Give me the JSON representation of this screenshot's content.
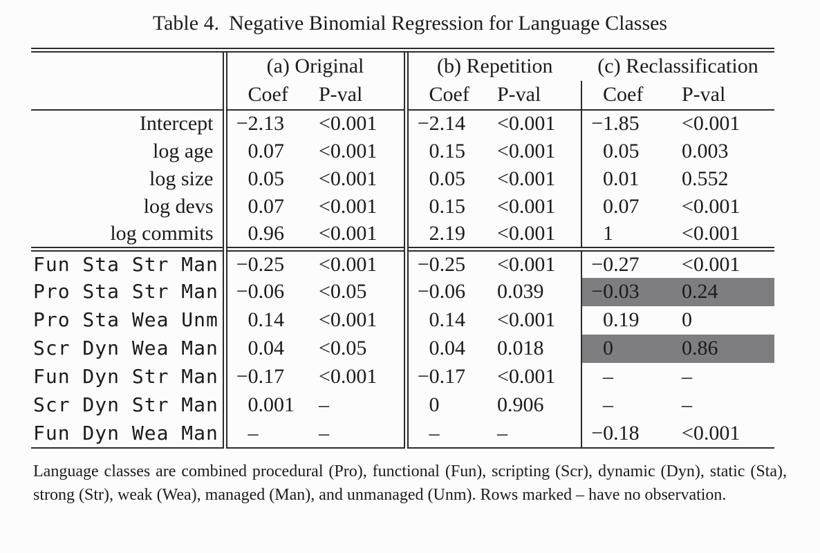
{
  "title": {
    "label": "Table 4.",
    "text": "Negative Binomial Regression for Language Classes"
  },
  "columns": {
    "coef": "Coef",
    "pval": "P-val"
  },
  "groups": [
    {
      "id": "a",
      "label": "(a) Original"
    },
    {
      "id": "b",
      "label": "(b) Repetition"
    },
    {
      "id": "c",
      "label": "(c) Reclassification"
    }
  ],
  "sections": [
    {
      "name": "model-controls",
      "mono": false,
      "rows": [
        {
          "label": "Intercept",
          "a": [
            "−2.13",
            "<0.001"
          ],
          "b": [
            "−2.14",
            "<0.001"
          ],
          "c": [
            "−1.85",
            "<0.001"
          ],
          "highlight_c": false
        },
        {
          "label": "log age",
          "a": [
            "0.07",
            "<0.001"
          ],
          "b": [
            "0.15",
            "<0.001"
          ],
          "c": [
            "0.05",
            "0.003"
          ],
          "highlight_c": false
        },
        {
          "label": "log size",
          "a": [
            "0.05",
            "<0.001"
          ],
          "b": [
            "0.05",
            "<0.001"
          ],
          "c": [
            "0.01",
            "0.552"
          ],
          "highlight_c": false
        },
        {
          "label": "log devs",
          "a": [
            "0.07",
            "<0.001"
          ],
          "b": [
            "0.15",
            "<0.001"
          ],
          "c": [
            "0.07",
            "<0.001"
          ],
          "highlight_c": false
        },
        {
          "label": "log commits",
          "a": [
            "0.96",
            "<0.001"
          ],
          "b": [
            "2.19",
            "<0.001"
          ],
          "c": [
            "1",
            "<0.001"
          ],
          "highlight_c": false
        }
      ]
    },
    {
      "name": "language-classes",
      "mono": true,
      "rows": [
        {
          "label": "Fun Sta Str Man",
          "a": [
            "−0.25",
            "<0.001"
          ],
          "b": [
            "−0.25",
            "<0.001"
          ],
          "c": [
            "−0.27",
            "<0.001"
          ],
          "highlight_c": false
        },
        {
          "label": "Pro Sta Str Man",
          "a": [
            "−0.06",
            "<0.05"
          ],
          "b": [
            "−0.06",
            "0.039"
          ],
          "c": [
            "−0.03",
            "0.24"
          ],
          "highlight_c": true
        },
        {
          "label": "Pro Sta Wea Unm",
          "a": [
            "0.14",
            "<0.001"
          ],
          "b": [
            "0.14",
            "<0.001"
          ],
          "c": [
            "0.19",
            "0"
          ],
          "highlight_c": false
        },
        {
          "label": "Scr Dyn Wea Man",
          "a": [
            "0.04",
            "<0.05"
          ],
          "b": [
            "0.04",
            "0.018"
          ],
          "c": [
            "0",
            "0.86"
          ],
          "highlight_c": true
        },
        {
          "label": "Fun Dyn Str Man",
          "a": [
            "−0.17",
            "<0.001"
          ],
          "b": [
            "−0.17",
            "<0.001"
          ],
          "c": [
            "–",
            "–"
          ],
          "highlight_c": false
        },
        {
          "label": "Scr Dyn Str Man",
          "a": [
            "0.001",
            "–"
          ],
          "b": [
            "0",
            "0.906"
          ],
          "c": [
            "–",
            "–"
          ],
          "highlight_c": false
        },
        {
          "label": "Fun Dyn Wea Man",
          "a": [
            "–",
            "–"
          ],
          "b": [
            "–",
            "–"
          ],
          "c": [
            "−0.18",
            "<0.001"
          ],
          "highlight_c": false
        }
      ]
    }
  ],
  "footnote": "Language classes are combined procedural (Pro), functional (Fun), scripting (Scr), dynamic (Dyn), static (Sta), strong (Str), weak (Wea), managed (Man), and unmanaged (Unm). Rows marked – have no observation.",
  "colors": {
    "highlight_gray": "#7e7e81",
    "text": "#1b1b1b",
    "rule": "#2b2b2b",
    "background": "#fcfcfc"
  }
}
